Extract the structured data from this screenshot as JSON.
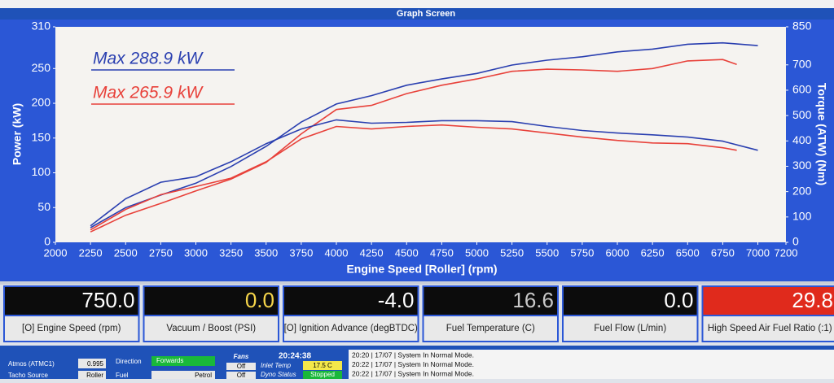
{
  "header": {
    "title": "Graph Screen"
  },
  "chart_data": {
    "type": "line",
    "x_label": "Engine Speed [Roller] (rpm)",
    "y_label": "Power (kW)",
    "y2_label": "Torque (ATW) (Nm)",
    "xlim": [
      2000,
      7200
    ],
    "xticks": [
      2000,
      2250,
      2500,
      2750,
      3000,
      3250,
      3500,
      3750,
      4000,
      4250,
      4500,
      4750,
      5000,
      5250,
      5500,
      5750,
      6000,
      6250,
      6500,
      6750,
      7000,
      7200
    ],
    "ylim": [
      0,
      310
    ],
    "yticks": [
      0,
      50,
      100,
      150,
      200,
      250,
      310
    ],
    "y2lim": [
      0,
      850
    ],
    "y2ticks": [
      0,
      100,
      200,
      300,
      400,
      500,
      600,
      700,
      850
    ],
    "grid": false,
    "annotations": [
      {
        "text": "Max 288.9 kW",
        "color": "#2a3fb0"
      },
      {
        "text": "Max 265.9 kW",
        "color": "#e8413a"
      }
    ],
    "series": [
      {
        "color": "#2a3fb0",
        "x": [
          2250,
          2500,
          2750,
          3000,
          3250,
          3500,
          3750,
          4000,
          4250,
          4500,
          4750,
          5000,
          5250,
          5500,
          5750,
          6000,
          6250,
          6500,
          6750,
          7000
        ],
        "values": [
          21,
          50,
          68,
          85,
          109,
          138,
          173,
          199,
          211,
          226,
          235,
          243,
          255,
          262,
          267,
          274,
          278,
          285,
          287,
          283
        ]
      },
      {
        "color": "#e8413a",
        "x": [
          2250,
          2500,
          2750,
          3000,
          3250,
          3500,
          3750,
          4000,
          4250,
          4500,
          4750,
          5000,
          5250,
          5500,
          5750,
          6000,
          6250,
          6500,
          6750,
          6850
        ],
        "values": [
          15,
          39,
          56,
          74,
          91,
          115,
          156,
          191,
          197,
          214,
          226,
          235,
          246,
          249,
          248,
          246,
          250,
          261,
          263,
          256
        ]
      },
      {
        "color": "#2a3fb0",
        "axis": "y2",
        "x": [
          2250,
          2500,
          2750,
          3000,
          3250,
          3500,
          3750,
          4000,
          4250,
          4500,
          4750,
          5000,
          5250,
          5500,
          5750,
          6000,
          6250,
          6500,
          6750,
          7000
        ],
        "values": [
          65,
          172,
          237,
          259,
          318,
          389,
          447,
          483,
          470,
          473,
          480,
          480,
          476,
          457,
          441,
          431,
          424,
          415,
          399,
          363
        ]
      },
      {
        "color": "#e8413a",
        "axis": "y2",
        "x": [
          2250,
          2500,
          2750,
          3000,
          3250,
          3500,
          3750,
          4000,
          4250,
          4500,
          4750,
          5000,
          5250,
          5500,
          5750,
          6000,
          6250,
          6500,
          6750,
          6850
        ],
        "values": [
          49,
          130,
          188,
          220,
          253,
          318,
          408,
          457,
          447,
          457,
          463,
          454,
          447,
          431,
          415,
          402,
          392,
          389,
          373,
          363
        ]
      }
    ]
  },
  "gauges": [
    {
      "value": "750.0",
      "label": "[O] Engine Speed (rpm)"
    },
    {
      "value": "0.0",
      "label": "Vacuum / Boost (PSI)"
    },
    {
      "value": "-4.0",
      "label": "[O] Ignition Advance (degBTDC)"
    },
    {
      "value": "16.6",
      "label": "Fuel Temperature (C)"
    },
    {
      "value": "0.0",
      "label": "Fuel Flow (L/min)"
    },
    {
      "value": "29.8",
      "label": "High Speed Air Fuel Ratio (:1)"
    }
  ],
  "status": {
    "atmos_label": "Atmos (ATMC1)",
    "atmos_value": "0.995",
    "tacho_label": "Tacho Source",
    "tacho_value": "Roller",
    "direction_label": "Direction",
    "direction_value": "Forwards",
    "fuel_label": "Fuel",
    "fuel_value": "Petrol",
    "fans_label": "Fans",
    "fan1": "Off",
    "fan2": "Off",
    "clock": "20:24:38",
    "inlet_label": "Inlet Temp",
    "inlet_value": "17.5 C",
    "dyno_label": "Dyno Status",
    "dyno_value": "Stopped"
  },
  "log": [
    "20:20 | 17/07 | System In Normal Mode.",
    "20:22 | 17/07 | System In Normal Mode.",
    "20:22 | 17/07 | System In Normal Mode."
  ]
}
